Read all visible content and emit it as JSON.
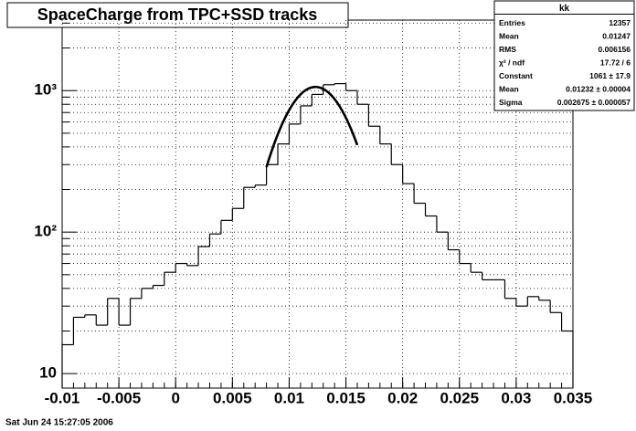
{
  "chart_data": {
    "type": "histogram",
    "title": "SpaceCharge from TPC+SSD tracks",
    "footer": "Sat Jun 24 15:27:05 2006",
    "bins": [
      -0.01,
      -0.009,
      -0.008,
      -0.007,
      -0.006,
      -0.005,
      -0.004,
      -0.003,
      -0.002,
      -0.001,
      0.0,
      0.001,
      0.002,
      0.003,
      0.004,
      0.005,
      0.006,
      0.007,
      0.008,
      0.009,
      0.01,
      0.011,
      0.012,
      0.013,
      0.014,
      0.015,
      0.016,
      0.017,
      0.018,
      0.019,
      0.02,
      0.021,
      0.022,
      0.023,
      0.024,
      0.025,
      0.026,
      0.027,
      0.028,
      0.029,
      0.03,
      0.031,
      0.032,
      0.033,
      0.034,
      0.035
    ],
    "values": [
      16,
      25,
      26,
      22,
      34,
      22,
      34,
      40,
      42,
      52,
      60,
      58,
      79,
      97,
      121,
      147,
      207,
      215,
      300,
      420,
      580,
      780,
      940,
      1100,
      1120,
      1000,
      800,
      560,
      420,
      300,
      220,
      160,
      130,
      100,
      75,
      60,
      52,
      46,
      46,
      34,
      30,
      35,
      33,
      27,
      20
    ],
    "color": "#000000",
    "fit": {
      "constant": 1061,
      "mean": 0.01232,
      "sigma": 0.002675,
      "xrange": [
        0.008,
        0.016
      ]
    },
    "xlim": [
      -0.01,
      0.035
    ],
    "xticks": [
      -0.01,
      -0.005,
      0,
      0.005,
      0.01,
      0.015,
      0.02,
      0.025,
      0.03,
      0.035
    ],
    "ylim": [
      7.9,
      3150
    ],
    "log_y": true,
    "yticks": [
      {
        "value": 10,
        "label": "10"
      },
      {
        "value": 100,
        "label": "10²"
      },
      {
        "value": 1000,
        "label": "10³"
      }
    ],
    "yminorticks": [
      20,
      30,
      40,
      50,
      60,
      70,
      80,
      90,
      200,
      300,
      400,
      500,
      600,
      700,
      800,
      900,
      2000,
      3000
    ],
    "grid": true,
    "stats": {
      "title": "kk",
      "rows": [
        {
          "label": "Entries",
          "value": "12357"
        },
        {
          "label": "Mean",
          "value": "0.01247"
        },
        {
          "label": "RMS",
          "value": "0.006156"
        },
        {
          "label": "χ² / ndf",
          "value": "17.72 / 6"
        },
        {
          "label": "Constant",
          "value": "1061 ± 17.9"
        },
        {
          "label": "Mean",
          "value": "0.01232 ± 0.00004"
        },
        {
          "label": "Sigma",
          "value": "0.002675 ± 0.000057"
        }
      ]
    }
  }
}
